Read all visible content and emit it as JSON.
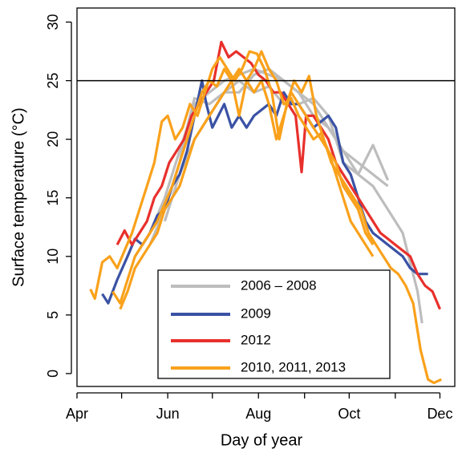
{
  "chart_data": {
    "type": "line",
    "x_label": "Day of year",
    "y_label": "Surface temperature (°C)",
    "xlim": [
      91,
      345
    ],
    "ylim": [
      -1.1,
      31.2
    ],
    "xticks": [
      {
        "value": 91,
        "label": "Apr"
      },
      {
        "value": 152,
        "label": "Jun"
      },
      {
        "value": 213,
        "label": "Aug"
      },
      {
        "value": 274,
        "label": "Oct"
      },
      {
        "value": 335,
        "label": "Dec"
      }
    ],
    "xminorticks": [
      121,
      182,
      244,
      305
    ],
    "yticks": [
      0,
      5,
      10,
      15,
      20,
      25,
      30
    ],
    "hline": 25,
    "series": [
      {
        "name": "2006 – 2008",
        "color": "#bdbdbd",
        "lines": [
          {
            "x": [
              130,
              140,
              150,
              160,
              170,
              180,
              190,
              200,
              210,
              220,
              230,
              240,
              250,
              260,
              270,
              280,
              290,
              300,
              310,
              320,
              323
            ],
            "values": [
              10,
              12,
              15,
              19,
              23,
              24,
              25,
              25.5,
              26,
              25.5,
              25,
              24,
              23,
              21,
              19,
              17,
              16,
              14,
              12,
              7,
              4.3
            ]
          },
          {
            "x": [
              140,
              150,
              160,
              165,
              170,
              180,
              190,
              200,
              210,
              220,
              230,
              240,
              250,
              260,
              270,
              280,
              290,
              300
            ],
            "values": [
              11,
              14,
              18,
              21,
              23.5,
              23,
              24,
              25,
              24,
              24.5,
              23,
              23,
              23.5,
              22,
              18,
              17,
              19.5,
              16.5
            ]
          },
          {
            "x": [
              150,
              160,
              170,
              180,
              190,
              200,
              210,
              220,
              230,
              240,
              250,
              260,
              270,
              280,
              290,
              300
            ],
            "values": [
              13,
              17,
              20,
              22,
              24,
              24,
              25.5,
              26,
              25,
              24,
              22,
              21,
              19,
              18,
              17,
              16
            ]
          }
        ]
      },
      {
        "name": "2009",
        "color": "#3a52a4",
        "lines": [
          {
            "x": [
              108,
              112,
              118,
              125,
              130,
              135,
              140,
              145,
              150,
              155,
              160,
              165,
              170,
              175,
              178,
              182,
              186,
              190,
              195,
              200,
              205,
              210,
              215,
              220,
              225,
              230,
              235,
              240,
              245,
              250,
              255,
              260,
              265,
              270,
              275,
              280,
              285,
              290,
              295,
              300,
              305,
              310,
              315,
              320,
              327
            ],
            "values": [
              6.8,
              6,
              8,
              10,
              11.5,
              11,
              12,
              13.5,
              14,
              16,
              17,
              19,
              22,
              25,
              23,
              21,
              22,
              23,
              21,
              22,
              21,
              22,
              22.5,
              23,
              22,
              24,
              23,
              23,
              22,
              21,
              21.5,
              22,
              21,
              18,
              17,
              15,
              13,
              12,
              11.5,
              11,
              10.5,
              10,
              9,
              8.5,
              8.5
            ]
          }
        ]
      },
      {
        "name": "2012",
        "color": "#e8302c",
        "lines": [
          {
            "x": [
              118,
              123,
              128,
              133,
              138,
              143,
              148,
              153,
              158,
              163,
              168,
              173,
              178,
              183,
              188,
              193,
              198,
              203,
              208,
              213,
              218,
              223,
              228,
              233,
              238,
              242,
              245,
              250,
              255,
              260,
              265,
              270,
              275,
              280,
              285,
              290,
              295,
              300,
              305,
              310,
              315,
              320,
              325,
              330,
              335
            ],
            "values": [
              11,
              12.2,
              11,
              12,
              13,
              15,
              16,
              18,
              19,
              20,
              22,
              23,
              24,
              25,
              28.3,
              27,
              27.5,
              27,
              26.5,
              25.5,
              25,
              24,
              24,
              23,
              22,
              17.2,
              22,
              22,
              21,
              20,
              18,
              17,
              16,
              15,
              14,
              13,
              12,
              11.5,
              11,
              10.5,
              10,
              8.5,
              7.5,
              7,
              5.5
            ]
          }
        ]
      },
      {
        "name": "2010, 2011, 2013",
        "color": "#f9a11b",
        "lines": [
          {
            "x": [
              100,
              103,
              108,
              113,
              118,
              123,
              128,
              133,
              138,
              143,
              148,
              152,
              157,
              162,
              167,
              172,
              177,
              182,
              187,
              192,
              197,
              202,
              207,
              212,
              217,
              222,
              227,
              232,
              237,
              242,
              247,
              252,
              257,
              262,
              267,
              272,
              277,
              282,
              287,
              292,
              297,
              302,
              307,
              312,
              317,
              322,
              327,
              331,
              336
            ],
            "values": [
              7.2,
              6.4,
              9.5,
              10,
              9,
              10.5,
              12,
              14,
              16,
              18,
              21.5,
              22,
              20,
              21,
              23,
              22,
              24,
              26,
              27,
              26,
              25,
              26,
              27.5,
              27.3,
              26,
              24,
              20,
              23,
              25,
              24,
              25.4,
              22,
              20,
              18,
              17,
              16,
              15,
              14,
              12,
              11,
              10,
              9,
              8.5,
              7.5,
              6,
              2,
              -0.5,
              -0.8,
              -0.5
            ]
          },
          {
            "x": [
              115,
              120,
              125,
              130,
              135,
              140,
              145,
              150,
              155,
              160,
              165,
              170,
              175,
              180,
              185,
              190,
              195,
              200,
              205,
              210,
              215,
              220,
              225,
              230,
              235,
              240,
              245,
              250,
              255,
              260,
              265,
              270,
              275,
              280,
              285,
              290
            ],
            "values": [
              7,
              6,
              8,
              10,
              11,
              12,
              13,
              14.5,
              16,
              18,
              20,
              22,
              24,
              25,
              24.5,
              26,
              25,
              22,
              25,
              26,
              27.5,
              26,
              25,
              23,
              23.5,
              22,
              21,
              20,
              20.5,
              19,
              18,
              16,
              15,
              14,
              12,
              11
            ]
          },
          {
            "x": [
              120,
              125,
              130,
              135,
              140,
              145,
              150,
              155,
              160,
              165,
              170,
              175,
              180,
              185,
              190,
              195,
              200,
              205,
              210,
              215,
              220,
              225,
              230,
              235,
              240,
              245,
              250,
              255,
              260,
              265,
              270,
              275,
              280,
              285,
              290
            ],
            "values": [
              5.5,
              7,
              9,
              10,
              11,
              12,
              14,
              15,
              16,
              18,
              20,
              21,
              22,
              23,
              24,
              25,
              26,
              25,
              24,
              25,
              23,
              20,
              22,
              24,
              23,
              22,
              21,
              20,
              19,
              17,
              15,
              13,
              12,
              11,
              10
            ]
          }
        ]
      }
    ]
  }
}
